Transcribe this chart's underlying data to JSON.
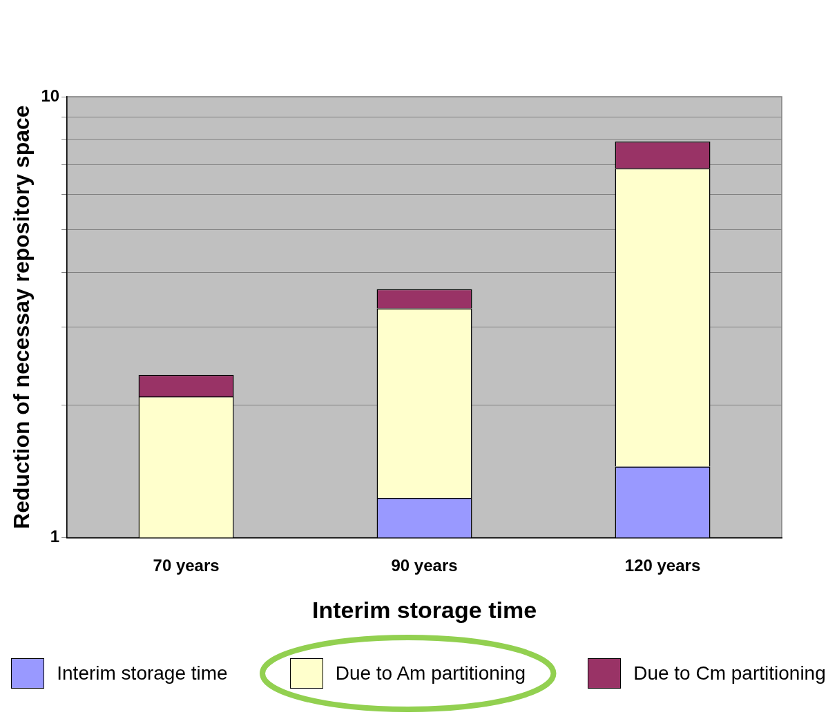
{
  "chart_data": {
    "type": "bar",
    "log": "y",
    "xlabel": "Interim storage time",
    "ylabel": "Reduction of necessay repository space",
    "categories": [
      "70 years",
      "90 years",
      "120 years"
    ],
    "series": [
      {
        "name": "Interim storage time",
        "color": "#9999ff",
        "base": [
          null,
          1,
          1
        ],
        "values": [
          null,
          0.23,
          0.45
        ]
      },
      {
        "name": "Due to Am partitioning",
        "color": "#ffffcc",
        "base": [
          1,
          1.23,
          1.45
        ],
        "values": [
          1.09,
          2.08,
          5.43
        ]
      },
      {
        "name": "Due to Cm partitioning",
        "color": "#993366",
        "base": [
          2.09,
          3.31,
          6.88
        ],
        "values": [
          0.25,
          0.35,
          1.03
        ]
      }
    ],
    "ylim": [
      1,
      10
    ],
    "yticks": [
      1,
      {
        "value": 2,
        "label": null
      },
      {
        "value": 3,
        "label": null
      },
      {
        "value": 4,
        "label": null
      },
      {
        "value": 5,
        "label": null
      },
      {
        "value": 6,
        "label": null
      },
      {
        "value": 7,
        "label": null
      },
      {
        "value": 8,
        "label": null
      },
      {
        "value": 9,
        "label": null
      },
      10
    ],
    "grid": "y",
    "legend": "bottom"
  }
}
